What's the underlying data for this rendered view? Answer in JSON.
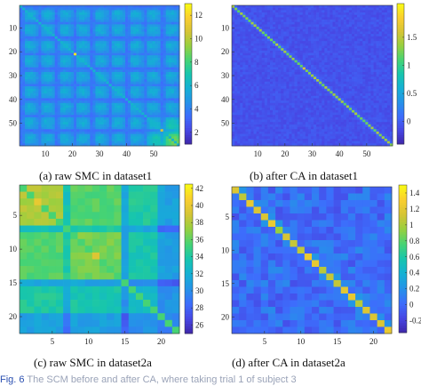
{
  "figure_caption": {
    "label": "Fig. 6",
    "text": "The SCM before and after CA, where taking trial 1 of subject 3"
  },
  "chart_data": [
    {
      "id": "a",
      "type": "heatmap",
      "caption": "(a)  raw SMC in dataset1",
      "n": 59,
      "xticks": [
        10,
        20,
        30,
        40,
        50
      ],
      "yticks": [
        10,
        20,
        30,
        40,
        50
      ],
      "colorbar": {
        "min": 1,
        "max": 13,
        "ticks": [
          2,
          4,
          6,
          8,
          10,
          12
        ]
      },
      "pattern": "block-grid",
      "block_size": 6.5,
      "diagonal_value": 12.5
    },
    {
      "id": "b",
      "type": "heatmap",
      "caption": "(b)  after CA in dataset1",
      "n": 59,
      "xticks": [
        10,
        20,
        30,
        40,
        50
      ],
      "yticks": [
        10,
        20,
        30,
        40,
        50
      ],
      "colorbar": {
        "min": -0.4,
        "max": 2.1,
        "ticks": [
          0,
          0.5,
          1,
          1.5
        ]
      },
      "pattern": "diagonal",
      "diagonal_value": 1.3
    },
    {
      "id": "c",
      "type": "heatmap",
      "caption": "(c)  raw SMC in dataset2a",
      "n": 22,
      "xticks": [
        5,
        10,
        15,
        20
      ],
      "yticks": [
        5,
        10,
        15,
        20
      ],
      "colorbar": {
        "min": 25,
        "max": 42.5,
        "ticks": [
          26,
          28,
          30,
          32,
          34,
          36,
          38,
          40,
          42
        ]
      },
      "pattern": "block-grid",
      "block_size": 6,
      "diagonal_value": 36
    },
    {
      "id": "d",
      "type": "heatmap",
      "caption": "(d)  after CA in dataset2a",
      "n": 22,
      "xticks": [
        5,
        10,
        15,
        20
      ],
      "yticks": [
        5,
        10,
        15,
        20
      ],
      "colorbar": {
        "min": -0.35,
        "max": 1.5,
        "ticks": [
          -0.2,
          0,
          0.2,
          0.4,
          0.6,
          0.8,
          1,
          1.2,
          1.4
        ]
      },
      "pattern": "diagonal",
      "diagonal_value": 1.15
    }
  ]
}
